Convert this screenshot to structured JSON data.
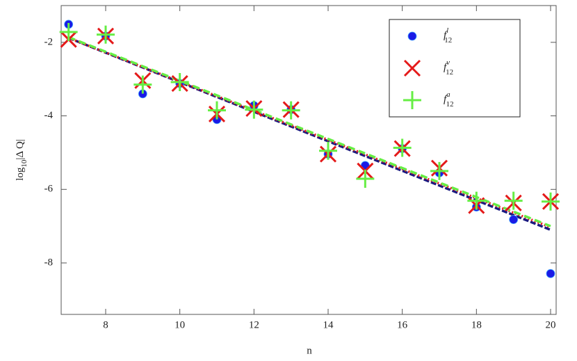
{
  "chart_data": {
    "type": "scatter",
    "x_label": "n",
    "y_label": {
      "main": "log",
      "sub": "10",
      "rest": "|Δ Q|"
    },
    "x": [
      7,
      8,
      9,
      10,
      11,
      12,
      13,
      14,
      15,
      16,
      17,
      18,
      19,
      20
    ],
    "xlim": [
      6.8,
      20.15
    ],
    "xticks": [
      8,
      10,
      12,
      14,
      16,
      18,
      20
    ],
    "ylim": [
      -9.4,
      -1
    ],
    "yticks": [
      -8,
      -6,
      -4,
      -2
    ],
    "legend": "top-right",
    "series": [
      {
        "name": {
          "base": "f",
          "sup": "l",
          "sub": "12"
        },
        "marker": "circle",
        "color": "#1a1ae6",
        "values": [
          -1.51,
          -1.83,
          -3.4,
          -3.12,
          -4.1,
          -3.72,
          -3.83,
          -5.04,
          -5.35,
          -4.89,
          -5.55,
          -6.48,
          -6.82,
          -8.29
        ]
      },
      {
        "name": {
          "base": "f",
          "sup": "v",
          "sub": "12"
        },
        "marker": "x",
        "color": "#e41a1a",
        "values": [
          -1.92,
          -1.83,
          -3.04,
          -3.12,
          -3.95,
          -3.8,
          -3.83,
          -5.04,
          -5.5,
          -4.89,
          -5.42,
          -6.44,
          -6.37,
          -6.33
        ]
      },
      {
        "name": {
          "base": "f",
          "sup": "a",
          "sub": "12"
        },
        "marker": "plus",
        "color": "#66ee44",
        "values": [
          -1.72,
          -1.79,
          -3.15,
          -3.08,
          -3.85,
          -3.83,
          -3.85,
          -4.95,
          -5.71,
          -4.87,
          -5.5,
          -6.31,
          -6.31,
          -6.33
        ]
      }
    ],
    "fits": [
      {
        "color": "#1a1a80",
        "dash": "8 3",
        "x": [
          7,
          20
        ],
        "values": [
          -1.88,
          -7.1
        ]
      },
      {
        "color": "#e41a1a",
        "dash": "2 3",
        "x": [
          7,
          20
        ],
        "values": [
          -1.88,
          -7.03
        ]
      },
      {
        "color": "#66ee44",
        "dash": "10 6",
        "x": [
          7,
          20
        ],
        "values": [
          -1.86,
          -7.0
        ]
      }
    ]
  }
}
